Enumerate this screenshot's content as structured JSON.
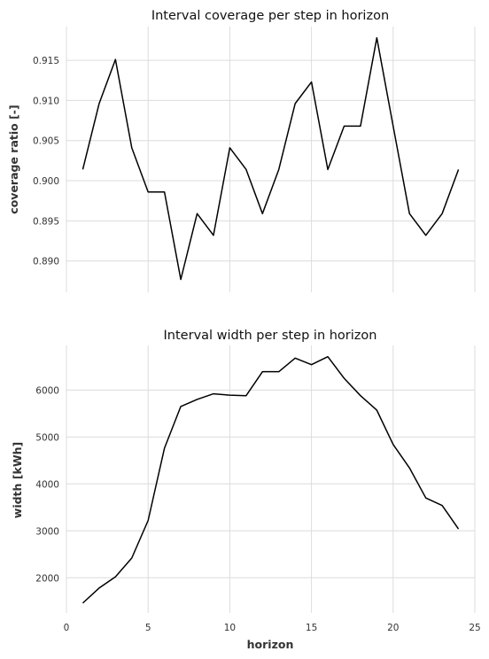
{
  "chart_data": [
    {
      "type": "line",
      "title": "Interval coverage per step in horizon",
      "xlabel": "",
      "ylabel": "coverage ratio [-]",
      "xlim": [
        0,
        25
      ],
      "ylim": [
        0.8861,
        0.9192
      ],
      "xticks": [
        0,
        5,
        10,
        15,
        20,
        25
      ],
      "yticks": [
        0.89,
        0.895,
        0.9,
        0.905,
        0.91,
        0.915
      ],
      "ytick_labels": [
        "0.890",
        "0.895",
        "0.900",
        "0.905",
        "0.910",
        "0.915"
      ],
      "show_xtick_labels": false,
      "grid": true,
      "x": [
        1,
        2,
        3,
        4,
        5,
        6,
        7,
        8,
        9,
        10,
        11,
        12,
        13,
        14,
        15,
        16,
        17,
        18,
        19,
        20,
        21,
        22,
        23,
        24
      ],
      "y": [
        0.9014,
        0.9096,
        0.9151,
        0.9041,
        0.8986,
        0.8986,
        0.8877,
        0.8959,
        0.8932,
        0.9041,
        0.9014,
        0.8959,
        0.9014,
        0.9096,
        0.9123,
        0.9014,
        0.9068,
        0.9068,
        0.9178,
        0.9068,
        0.8959,
        0.8932,
        0.8959,
        0.9014
      ]
    },
    {
      "type": "line",
      "title": "Interval width per step in horizon",
      "xlabel": "horizon",
      "ylabel": "width [kWh]",
      "xlim": [
        0,
        25
      ],
      "ylim": [
        1250,
        6950
      ],
      "xticks": [
        0,
        5,
        10,
        15,
        20,
        25
      ],
      "xtick_labels": [
        "0",
        "5",
        "10",
        "15",
        "20",
        "25"
      ],
      "yticks": [
        2000,
        3000,
        4000,
        5000,
        6000
      ],
      "ytick_labels": [
        "2000",
        "3000",
        "4000",
        "5000",
        "6000"
      ],
      "show_xtick_labels": true,
      "grid": true,
      "x": [
        1,
        2,
        3,
        4,
        5,
        6,
        7,
        8,
        9,
        10,
        11,
        12,
        13,
        14,
        15,
        16,
        17,
        18,
        19,
        20,
        21,
        22,
        23,
        24
      ],
      "y": [
        1460,
        1780,
        2020,
        2420,
        3220,
        4760,
        5650,
        5800,
        5920,
        5890,
        5880,
        6390,
        6390,
        6680,
        6540,
        6710,
        6250,
        5880,
        5570,
        4840,
        4340,
        3700,
        3540,
        3040
      ]
    }
  ]
}
